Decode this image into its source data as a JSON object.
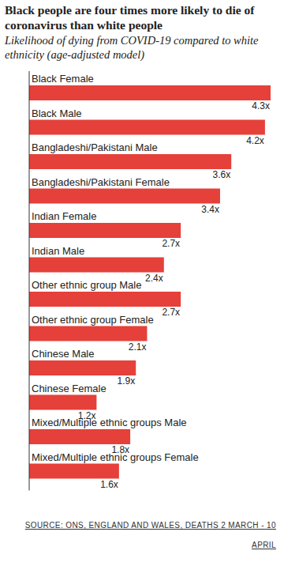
{
  "chart_data": {
    "type": "bar",
    "orientation": "horizontal",
    "title": "Black people are four times more likely to die of coronavirus than white people",
    "subtitle": "Likelihood of dying from COVID-19 compared to white ethnicity (age-adjusted model)",
    "source": "SOURCE: ONS, ENGLAND AND WALES, DEATHS 2 MARCH - 10 APRIL",
    "categories": [
      "Black Female",
      "Black Male",
      "Bangladeshi/Pakistani Male",
      "Bangladeshi/Pakistani Female",
      "Indian Female",
      "Indian Male",
      "Other ethnic group Male",
      "Other ethnic group Female",
      "Chinese Male",
      "Chinese Female",
      "Mixed/Multiple ethnic groups Male",
      "Mixed/Multiple ethnic groups Female"
    ],
    "values": [
      4.3,
      4.2,
      3.6,
      3.4,
      2.7,
      2.4,
      2.7,
      2.1,
      1.9,
      1.2,
      1.8,
      1.6
    ],
    "value_labels": [
      "4.3x",
      "4.2x",
      "3.6x",
      "3.4x",
      "2.7x",
      "2.4x",
      "2.7x",
      "2.1x",
      "1.9x",
      "1.2x",
      "1.8x",
      "1.6x"
    ],
    "color": "#e5403a",
    "xlim": [
      0,
      4.3
    ],
    "grid": false,
    "data_labels": true,
    "tick_labels": false
  }
}
